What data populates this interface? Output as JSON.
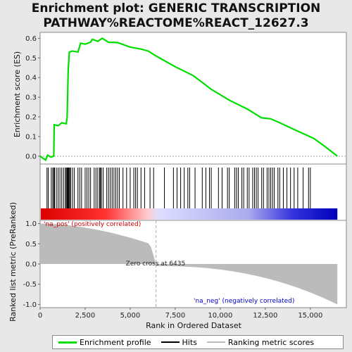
{
  "title_line1": "Enrichment plot: GENERIC TRANSCRIPTION",
  "title_line2": "PATHWAY%REACTOME%REACT_12627.3",
  "colors": {
    "es_line": "#00dd00",
    "hits": "#000000",
    "metric_fill": "#bbbbbb",
    "pos_text": "#cc0000",
    "neg_text": "#0000cc"
  },
  "legend": {
    "enrichment_profile": "Enrichment profile",
    "hits": "Hits",
    "ranking_metric": "Ranking metric scores"
  },
  "chart_data": [
    {
      "type": "line",
      "name": "enrichment-profile",
      "ylabel": "Enrichment score (ES)",
      "xlim": [
        0,
        17000
      ],
      "ylim": [
        -0.04,
        0.63
      ],
      "yticks": [
        "0.0",
        "0.1",
        "0.2",
        "0.3",
        "0.4",
        "0.5",
        "0.6"
      ],
      "points": [
        [
          0,
          0.0
        ],
        [
          300,
          -0.02
        ],
        [
          420,
          0.005
        ],
        [
          600,
          -0.005
        ],
        [
          760,
          0.0
        ],
        [
          780,
          0.16
        ],
        [
          1000,
          0.155
        ],
        [
          1200,
          0.17
        ],
        [
          1450,
          0.165
        ],
        [
          1500,
          0.2
        ],
        [
          1560,
          0.44
        ],
        [
          1620,
          0.53
        ],
        [
          1800,
          0.535
        ],
        [
          2100,
          0.53
        ],
        [
          2250,
          0.575
        ],
        [
          2500,
          0.57
        ],
        [
          2800,
          0.58
        ],
        [
          2900,
          0.595
        ],
        [
          3200,
          0.585
        ],
        [
          3450,
          0.6
        ],
        [
          3800,
          0.58
        ],
        [
          4300,
          0.578
        ],
        [
          5000,
          0.555
        ],
        [
          5600,
          0.545
        ],
        [
          6000,
          0.535
        ],
        [
          6435,
          0.51
        ],
        [
          7500,
          0.455
        ],
        [
          8500,
          0.41
        ],
        [
          9500,
          0.34
        ],
        [
          10500,
          0.285
        ],
        [
          11500,
          0.24
        ],
        [
          12300,
          0.195
        ],
        [
          12800,
          0.19
        ],
        [
          13300,
          0.17
        ],
        [
          14000,
          0.14
        ],
        [
          14600,
          0.115
        ],
        [
          15200,
          0.09
        ],
        [
          15800,
          0.05
        ],
        [
          16500,
          0.0
        ]
      ]
    },
    {
      "type": "bar",
      "name": "ranking-metric",
      "ylabel": "Ranked list metric (PreRanked)",
      "xlabel": "Rank in Ordered Dataset",
      "xlim": [
        0,
        17000
      ],
      "ylim": [
        -1.08,
        1.08
      ],
      "xticks": [
        "0",
        "2,500",
        "5,000",
        "7,500",
        "10,000",
        "12,500",
        "15,000"
      ],
      "yticks": [
        "-1.0",
        "-0.5",
        "0.0",
        "0.5",
        "1.0"
      ],
      "zero_cross": 6435,
      "zero_cross_label": "Zero cross at 6435",
      "pos_label": "'na_pos' (positively correlated)",
      "neg_label": "'na_neg' (negatively correlated)",
      "hit_ranks": [
        380,
        450,
        620,
        700,
        760,
        800,
        900,
        1000,
        1100,
        1200,
        1300,
        1400,
        1450,
        1500,
        1520,
        1560,
        1600,
        1640,
        1700,
        1800,
        1900,
        2100,
        2200,
        2300,
        2500,
        2600,
        2700,
        2800,
        3000,
        3100,
        3200,
        3300,
        3350,
        3400,
        3500,
        3700,
        3800,
        3900,
        4000,
        4100,
        4200,
        4300,
        4400,
        4600,
        4800,
        5000,
        5200,
        5300,
        5400,
        5600,
        5800,
        6100,
        6300,
        6900,
        7400,
        7600,
        7800,
        8000,
        8200,
        8300,
        8600,
        9000,
        9200,
        9400,
        9500,
        9900,
        10100,
        10400,
        10500,
        10800,
        10900,
        11000,
        11200,
        11300,
        11500,
        11600,
        11800,
        11900,
        12000,
        12100,
        12300,
        12400,
        12600,
        12700,
        12800,
        12900,
        13000,
        13200,
        13300,
        13500,
        13700,
        13900,
        14100,
        14300,
        14600,
        14900,
        15000
      ]
    }
  ]
}
